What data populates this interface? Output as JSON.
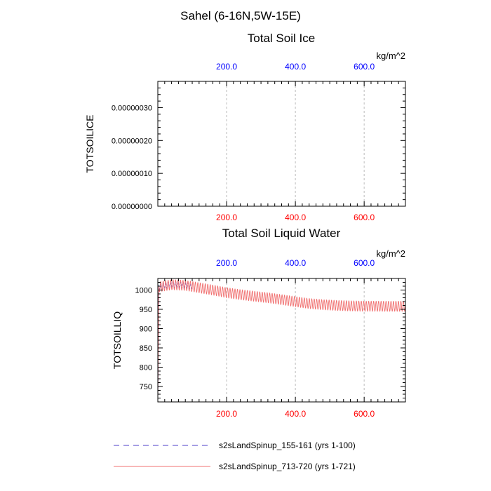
{
  "figure": {
    "main_title": "Sahel (6-16N,5W-15E)"
  },
  "colors": {
    "blue": "#0000ff",
    "red": "#ff0000",
    "series_blue": "#4b3cc8",
    "series_red": "#f07070",
    "grid": "#bbbbbb",
    "axis": "#000000"
  },
  "chart_data": [
    {
      "type": "line",
      "title": "Total Soil Ice",
      "ylabel": "TOTSOILICE",
      "units": "kg/m^2",
      "xlim": [
        0,
        720
      ],
      "ylim": [
        0,
        3.8e-07
      ],
      "yticks": [
        0,
        1e-07,
        2e-07,
        3e-07
      ],
      "ytick_labels": [
        "0.00000000",
        "0.00000010",
        "0.00000020",
        "0.00000030"
      ],
      "xticks": [
        200,
        400,
        600
      ],
      "xtick_labels_top": [
        "200.0",
        "400.0",
        "600.0"
      ],
      "xtick_labels_bottom": [
        "200.0",
        "400.0",
        "600.0"
      ],
      "grid_x": true,
      "series": []
    },
    {
      "type": "line",
      "title": "Total Soil Liquid Water",
      "ylabel": "TOTSOILLIQ",
      "units": "kg/m^2",
      "xlim": [
        0,
        720
      ],
      "ylim": [
        710,
        1030
      ],
      "yticks": [
        750,
        800,
        850,
        900,
        950,
        1000
      ],
      "ytick_labels": [
        "750",
        "800",
        "850",
        "900",
        "950",
        "1000"
      ],
      "xticks": [
        200,
        400,
        600
      ],
      "xtick_labels_top": [
        "200.0",
        "400.0",
        "600.0"
      ],
      "xtick_labels_bottom": [
        "200.0",
        "400.0",
        "600.0"
      ],
      "grid_x": true,
      "series": [
        {
          "name": "s2sLandSpinup_155-161 (yrs 1-100)",
          "style": "dashed",
          "color": "#4b3cc8",
          "x_range": [
            0,
            100
          ],
          "start": 710,
          "seasonal_mean": [
            1008,
            1014,
            1012,
            1006,
            1000,
            993,
            988,
            985
          ],
          "amplitude": 8
        },
        {
          "name": "s2sLandSpinup_713-720 (yrs 1-721)",
          "style": "solid",
          "color": "#f07070",
          "x_range": [
            0,
            721
          ],
          "start": 710,
          "seasonal_mean": [
            1008,
            1014,
            1012,
            1006,
            1000,
            993,
            988,
            984,
            980,
            975,
            970,
            965,
            962,
            960,
            959,
            958,
            958,
            958
          ],
          "amplitude": 13
        }
      ]
    }
  ]
}
